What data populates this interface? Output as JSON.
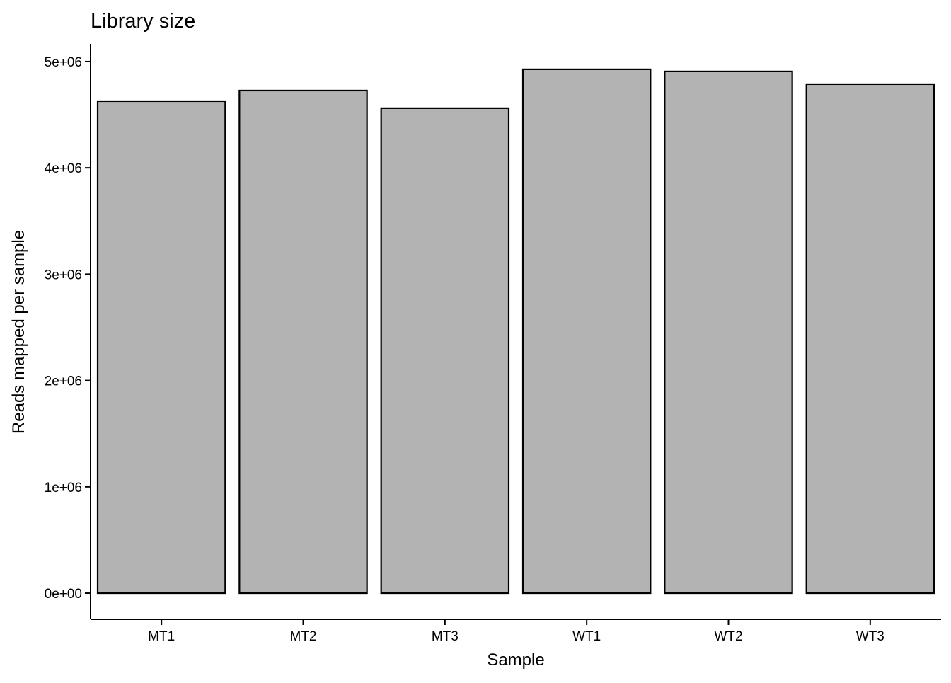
{
  "chart_data": {
    "type": "bar",
    "title": "Library size",
    "xlabel": "Sample",
    "ylabel": "Reads mapped per sample",
    "categories": [
      "MT1",
      "MT2",
      "MT3",
      "WT1",
      "WT2",
      "WT3"
    ],
    "values": [
      4627000,
      4727000,
      4561000,
      4927000,
      4907000,
      4787000
    ],
    "yticks": [
      0,
      1000000,
      2000000,
      3000000,
      4000000,
      5000000
    ],
    "ytick_labels": [
      "0e+00",
      "1e+06",
      "2e+06",
      "3e+06",
      "4e+06",
      "5e+06"
    ],
    "ylim": [
      -246000,
      5166000
    ],
    "grid": false,
    "bar_fill": "#b3b3b3",
    "bar_stroke": "#000000"
  }
}
